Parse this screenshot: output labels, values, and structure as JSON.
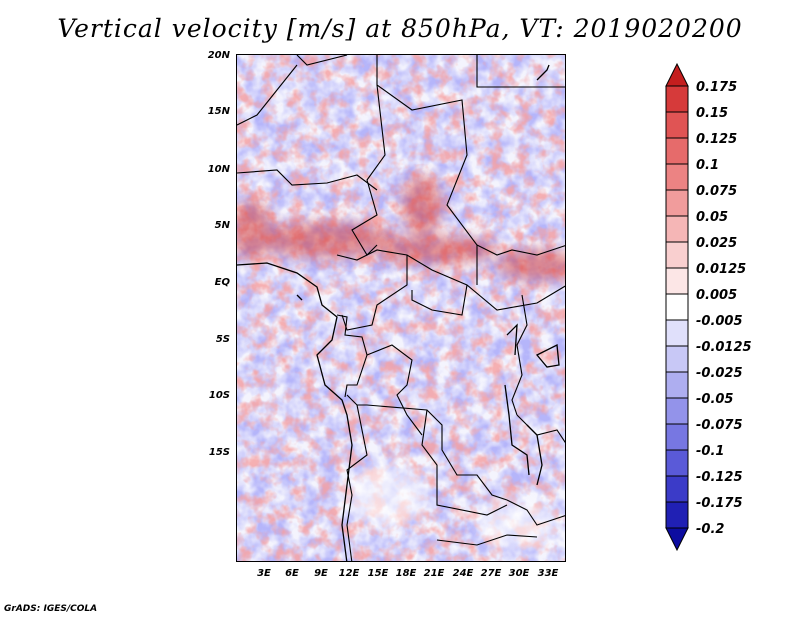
{
  "title": "Vertical velocity [m/s] at 850hPa, VT: 2019020200",
  "latitude_labels": [
    "20N",
    "15N",
    "10N",
    "5N",
    "EQ",
    "5S",
    "10S",
    "15S"
  ],
  "longitude_labels": [
    "3E",
    "6E",
    "9E",
    "12E",
    "15E",
    "18E",
    "21E",
    "24E",
    "27E",
    "30E",
    "33E"
  ],
  "colorbar": {
    "levels": [
      "0.175",
      "0.15",
      "0.125",
      "0.1",
      "0.075",
      "0.05",
      "0.025",
      "0.0125",
      "0.005",
      "-0.005",
      "-0.0125",
      "-0.025",
      "-0.05",
      "-0.075",
      "-0.1",
      "-0.125",
      "-0.175",
      "-0.2"
    ],
    "colors": [
      "#c41e1e",
      "#d63a3a",
      "#e05454",
      "#e66b6b",
      "#ec8383",
      "#f19c9c",
      "#f5b6b6",
      "#f9cfcf",
      "#fce6e6",
      "#ffffff",
      "#e0e0fb",
      "#c8c8f6",
      "#aeaef0",
      "#9393ea",
      "#7777e2",
      "#5a5ad8",
      "#3b3bc8",
      "#2020b4",
      "#0c0ca0"
    ]
  },
  "footer": "GrADS: IGES/COLA"
}
